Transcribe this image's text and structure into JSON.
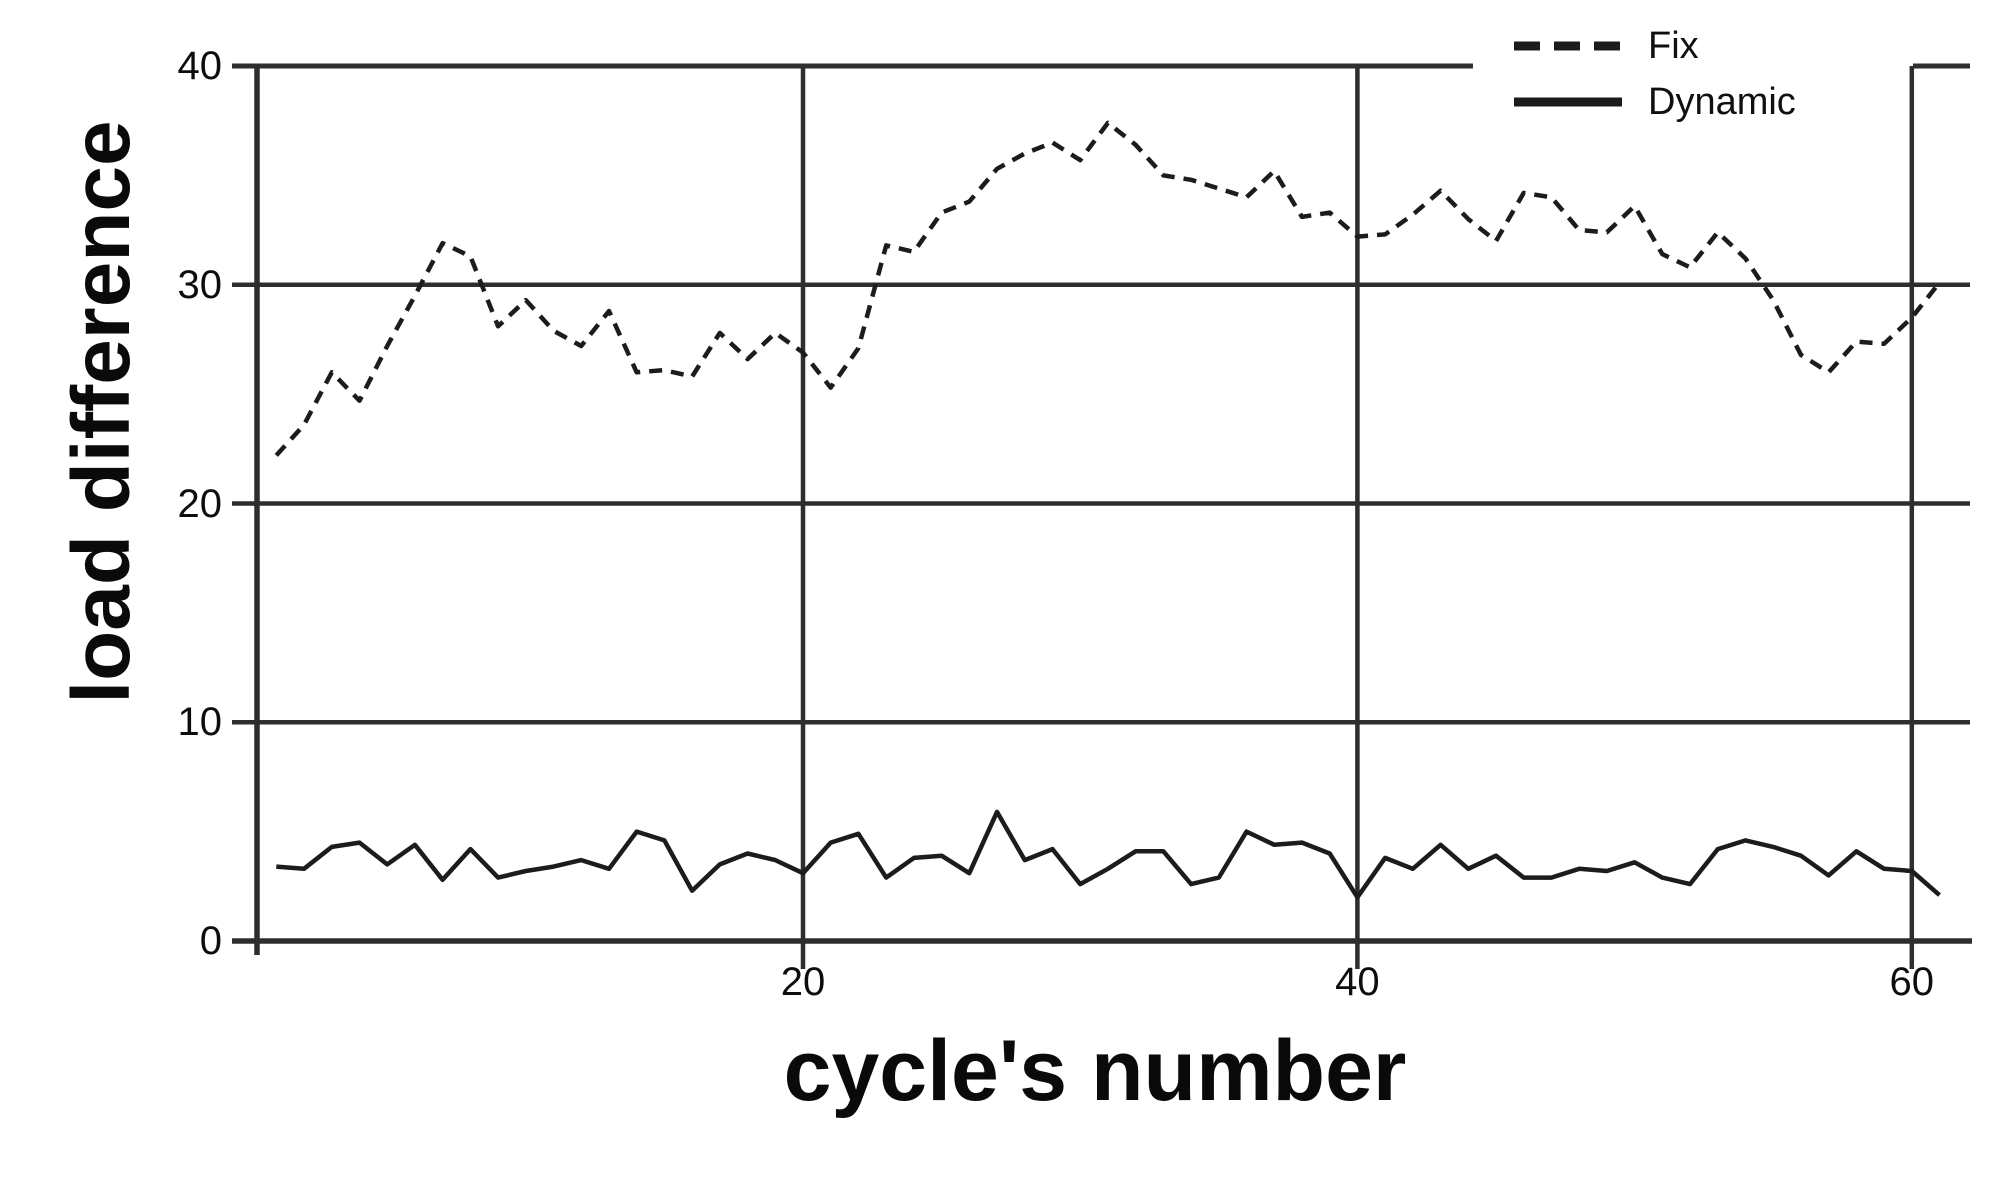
{
  "figure": {
    "y_axis_title": "load difference",
    "x_axis_title": "cycle's number"
  },
  "legend": {
    "position": "top-right",
    "items": [
      {
        "label": "Fix",
        "style": "dashed"
      },
      {
        "label": "Dynamic",
        "style": "solid"
      }
    ]
  },
  "colors": {
    "line": "#1c1c1c",
    "grid": "#2e2e2e",
    "axis": "#222222",
    "text": "#0d0d0d",
    "background": "#ffffff"
  },
  "chart_data": {
    "type": "line",
    "title": "",
    "xlabel": "cycle's number",
    "ylabel": "load difference",
    "x_range": [
      1,
      61
    ],
    "ylim": [
      0,
      40
    ],
    "yticks": [
      0,
      10,
      20,
      30,
      40
    ],
    "xticks": [
      20,
      40,
      60
    ],
    "grid": true,
    "legend_position": "top-right",
    "series": [
      {
        "name": "Fix",
        "dash": "dashed",
        "values": [
          22.2,
          23.6,
          26.0,
          24.7,
          27.2,
          29.5,
          31.9,
          31.3,
          28.1,
          29.3,
          27.9,
          27.2,
          28.8,
          26.0,
          26.1,
          25.8,
          27.8,
          26.6,
          27.8,
          26.9,
          25.3,
          27.1,
          31.8,
          31.5,
          33.3,
          33.8,
          35.3,
          36.0,
          36.5,
          35.7,
          37.4,
          36.4,
          35.0,
          34.8,
          34.4,
          34.0,
          35.2,
          33.1,
          33.3,
          32.2,
          32.3,
          33.2,
          34.3,
          33.0,
          32.0,
          34.2,
          34.0,
          32.5,
          32.4,
          33.6,
          31.4,
          30.8,
          32.4,
          31.2,
          29.3,
          26.8,
          26.0,
          27.4,
          27.3,
          28.5,
          30.1
        ]
      },
      {
        "name": "Dynamic",
        "dash": "solid",
        "values": [
          3.4,
          3.3,
          4.3,
          4.5,
          3.5,
          4.4,
          2.8,
          4.2,
          2.9,
          3.2,
          3.4,
          3.7,
          3.3,
          5.0,
          4.6,
          2.3,
          3.5,
          4.0,
          3.7,
          3.1,
          4.5,
          4.9,
          2.9,
          3.8,
          3.9,
          3.1,
          5.9,
          3.7,
          4.2,
          2.6,
          3.3,
          4.1,
          4.1,
          2.6,
          2.9,
          5.0,
          4.4,
          4.5,
          4.0,
          2.0,
          3.8,
          3.3,
          4.4,
          3.3,
          3.9,
          2.9,
          2.9,
          3.3,
          3.2,
          3.6,
          2.9,
          2.6,
          4.2,
          4.6,
          4.3,
          3.9,
          3.0,
          4.1,
          3.3,
          3.2,
          2.1
        ]
      }
    ]
  }
}
